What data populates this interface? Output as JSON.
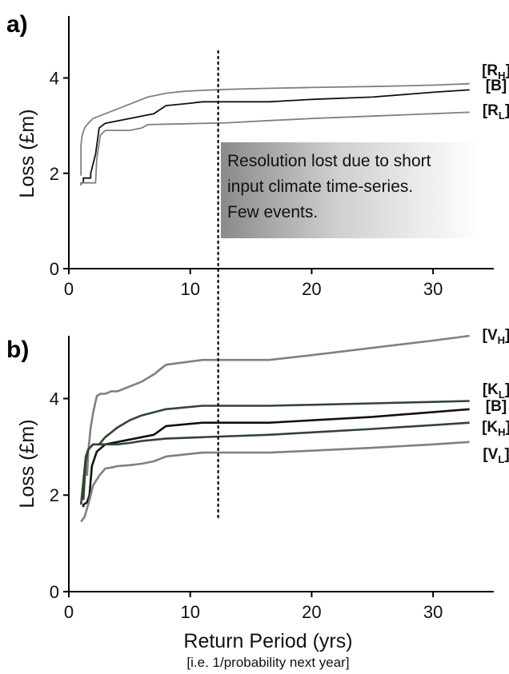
{
  "chart_data": [
    {
      "panel_label": "a)",
      "type": "line",
      "xlabel": "",
      "ylabel": "Loss (£m)",
      "xlim": [
        0,
        35
      ],
      "ylim": [
        0,
        5.3
      ],
      "xticks": [
        0,
        10,
        20,
        30
      ],
      "yticks": [
        0,
        2,
        4
      ],
      "threshold_x": 12.3,
      "annotation": {
        "lines": [
          "Resolution lost due to short",
          "input climate time-series.",
          "Few events."
        ]
      },
      "series": [
        {
          "label_main": "[R",
          "label_sub": "H",
          "label_end": "]",
          "color": "#808080",
          "x": [
            1.0,
            1.0,
            1.1,
            1.3,
            1.6,
            2.0,
            2.5,
            3.0,
            4.0,
            5.0,
            6.5,
            8.0,
            9.5,
            11.0,
            13.0,
            16.0,
            20.0,
            25.0,
            30.0,
            33.0
          ],
          "y": [
            1.95,
            2.6,
            2.8,
            2.95,
            3.05,
            3.15,
            3.2,
            3.25,
            3.35,
            3.45,
            3.6,
            3.68,
            3.72,
            3.74,
            3.76,
            3.78,
            3.8,
            3.82,
            3.85,
            3.88
          ]
        },
        {
          "label_main": "[B",
          "label_sub": "",
          "label_end": "]",
          "color": "#111111",
          "x": [
            1.0,
            1.0,
            1.2,
            1.2,
            1.8,
            1.8,
            2.2,
            2.5,
            3.0,
            4.0,
            5.0,
            6.0,
            7.0,
            8.0,
            10.0,
            11.0,
            13.0,
            16.5,
            20.0,
            25.0,
            30.0,
            33.0
          ],
          "y": [
            1.75,
            1.8,
            1.8,
            1.9,
            1.9,
            2.0,
            2.4,
            2.95,
            3.05,
            3.1,
            3.15,
            3.2,
            3.25,
            3.42,
            3.47,
            3.5,
            3.5,
            3.5,
            3.55,
            3.6,
            3.7,
            3.75
          ]
        },
        {
          "label_main": "[R",
          "label_sub": "L",
          "label_end": "]",
          "color": "#808080",
          "x": [
            1.0,
            1.0,
            1.5,
            1.5,
            2.2,
            2.3,
            2.6,
            3.0,
            4.0,
            5.0,
            6.0,
            6.5,
            8.0,
            10.0,
            13.0,
            16.0,
            20.0,
            25.0,
            30.0,
            33.0
          ],
          "y": [
            1.75,
            1.8,
            1.8,
            1.8,
            1.8,
            2.3,
            2.8,
            2.9,
            2.9,
            2.9,
            2.95,
            3.02,
            3.03,
            3.04,
            3.06,
            3.1,
            3.15,
            3.2,
            3.25,
            3.28
          ]
        }
      ]
    },
    {
      "panel_label": "b)",
      "type": "line",
      "xlabel": "Return Period (yrs)",
      "xnote": "[i.e. 1/probability next year]",
      "ylabel": "Loss (£m)",
      "xlim": [
        0,
        35
      ],
      "ylim": [
        0,
        5.3
      ],
      "xticks": [
        0,
        10,
        20,
        30
      ],
      "yticks": [
        0,
        2,
        4
      ],
      "threshold_x": 12.3,
      "series": [
        {
          "label_main": "[V",
          "label_sub": "H",
          "label_end": "]",
          "color": "#808080",
          "x": [
            1.5,
            1.6,
            1.8,
            2.0,
            2.3,
            2.6,
            3.0,
            3.5,
            4.0,
            5.0,
            6.0,
            7.0,
            8.0,
            11.0,
            16.5,
            20.0,
            25.0,
            30.0,
            33.0
          ],
          "y": [
            2.4,
            2.9,
            3.4,
            3.7,
            4.05,
            4.1,
            4.1,
            4.15,
            4.15,
            4.25,
            4.35,
            4.5,
            4.7,
            4.8,
            4.8,
            4.9,
            5.05,
            5.2,
            5.3
          ]
        },
        {
          "label_main": "[K",
          "label_sub": "L",
          "label_end": "]",
          "color": "#334433",
          "x": [
            1.2,
            1.4,
            1.6,
            1.8,
            2.0,
            2.5,
            3.0,
            4.0,
            5.0,
            6.0,
            8.0,
            11.0,
            16.5,
            20.0,
            25.0,
            30.0,
            33.0
          ],
          "y": [
            1.9,
            2.7,
            2.95,
            3.0,
            3.05,
            3.05,
            3.2,
            3.4,
            3.55,
            3.65,
            3.78,
            3.85,
            3.85,
            3.87,
            3.9,
            3.93,
            3.95
          ]
        },
        {
          "label_main": "[B",
          "label_sub": "",
          "label_end": "]",
          "color": "#111111",
          "x": [
            1.2,
            1.2,
            1.5,
            1.7,
            1.9,
            2.3,
            3.0,
            4.0,
            5.0,
            6.0,
            7.0,
            8.0,
            11.0,
            16.5,
            20.0,
            25.0,
            30.0,
            33.0
          ],
          "y": [
            1.75,
            1.8,
            1.85,
            2.0,
            2.6,
            2.9,
            3.05,
            3.1,
            3.15,
            3.2,
            3.25,
            3.43,
            3.5,
            3.5,
            3.55,
            3.62,
            3.72,
            3.78
          ]
        },
        {
          "label_main": "[K",
          "label_sub": "H",
          "label_end": "]",
          "color": "#334433",
          "x": [
            1.0,
            1.2,
            1.4,
            1.6,
            1.8,
            2.0,
            2.5,
            3.0,
            4.0,
            5.0,
            6.0,
            8.0,
            11.0,
            16.5,
            20.0,
            25.0,
            30.0,
            33.0
          ],
          "y": [
            1.8,
            2.3,
            2.8,
            2.95,
            3.0,
            3.05,
            3.05,
            3.05,
            3.05,
            3.08,
            3.12,
            3.17,
            3.2,
            3.25,
            3.3,
            3.37,
            3.45,
            3.5
          ]
        },
        {
          "label_main": "[V",
          "label_sub": "L",
          "label_end": "]",
          "color": "#808080",
          "x": [
            1.0,
            1.3,
            1.7,
            2.0,
            2.5,
            3.0,
            3.5,
            4.0,
            5.0,
            6.0,
            7.0,
            8.0,
            11.0,
            16.5,
            20.0,
            25.0,
            30.0,
            33.0
          ],
          "y": [
            1.45,
            1.55,
            1.9,
            2.2,
            2.4,
            2.55,
            2.57,
            2.6,
            2.62,
            2.65,
            2.7,
            2.8,
            2.88,
            2.88,
            2.92,
            2.98,
            3.05,
            3.1
          ]
        }
      ]
    }
  ]
}
